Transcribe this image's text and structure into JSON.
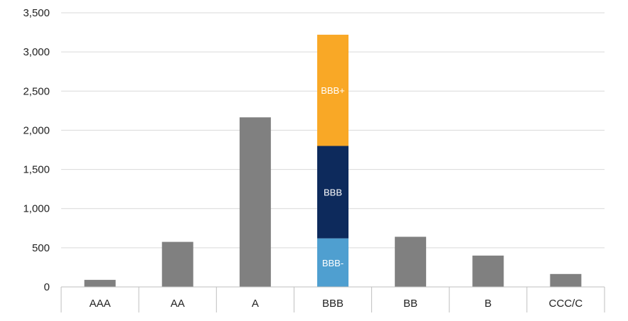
{
  "chart_data": {
    "type": "bar",
    "stacked": true,
    "title": "",
    "xlabel": "",
    "ylabel": "",
    "ylim": [
      0,
      3500
    ],
    "yticks": [
      0,
      500,
      1000,
      1500,
      2000,
      2500,
      3000,
      3500
    ],
    "ytick_labels": [
      "0",
      "500",
      "1,000",
      "1,500",
      "2,000",
      "2,500",
      "3,000",
      "3,500"
    ],
    "grid": true,
    "legend": "none",
    "categories": [
      "AAA",
      "AA",
      "A",
      "BBB",
      "BB",
      "B",
      "CCC/C"
    ],
    "series": [
      {
        "label": "",
        "color": "#808080",
        "values": [
          90,
          575,
          2165,
          0,
          640,
          400,
          165
        ]
      },
      {
        "label": "BBB-",
        "color": "#4f9fd0",
        "values": [
          0,
          0,
          0,
          620,
          0,
          0,
          0
        ]
      },
      {
        "label": "BBB",
        "color": "#0d2a5c",
        "values": [
          0,
          0,
          0,
          1180,
          0,
          0,
          0
        ]
      },
      {
        "label": "BBB+",
        "color": "#f9a826",
        "values": [
          0,
          0,
          0,
          1420,
          0,
          0,
          0
        ]
      }
    ]
  }
}
